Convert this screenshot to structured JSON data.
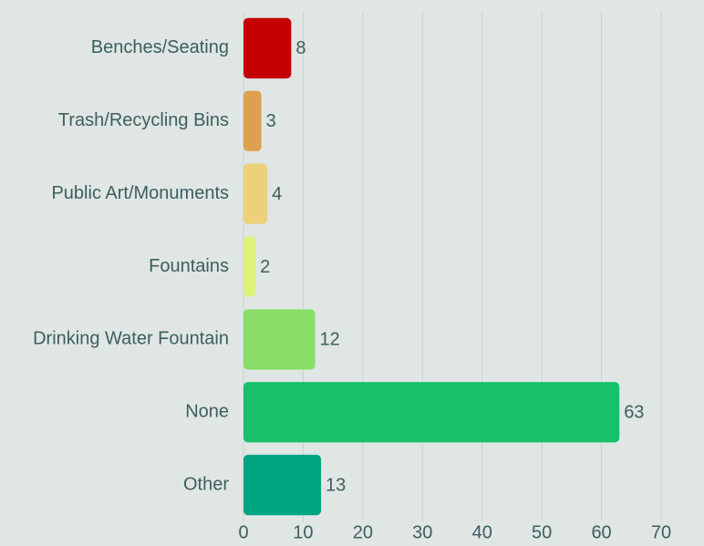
{
  "chart_data": {
    "type": "barh",
    "categories": [
      "Benches/Seating",
      "Trash/Recycling Bins",
      "Public Art/Monuments",
      "Fountains",
      "Drinking Water Fountain",
      "None",
      "Other"
    ],
    "values": [
      8,
      3,
      4,
      2,
      12,
      63,
      13
    ],
    "colors": [
      "#c40000",
      "#dea050",
      "#eed07a",
      "#def27a",
      "#88de68",
      "#18c06c",
      "#00a582"
    ],
    "xlim": [
      0,
      70
    ],
    "xticks": [
      0,
      10,
      20,
      30,
      40,
      50,
      60,
      70
    ],
    "grid": true
  }
}
